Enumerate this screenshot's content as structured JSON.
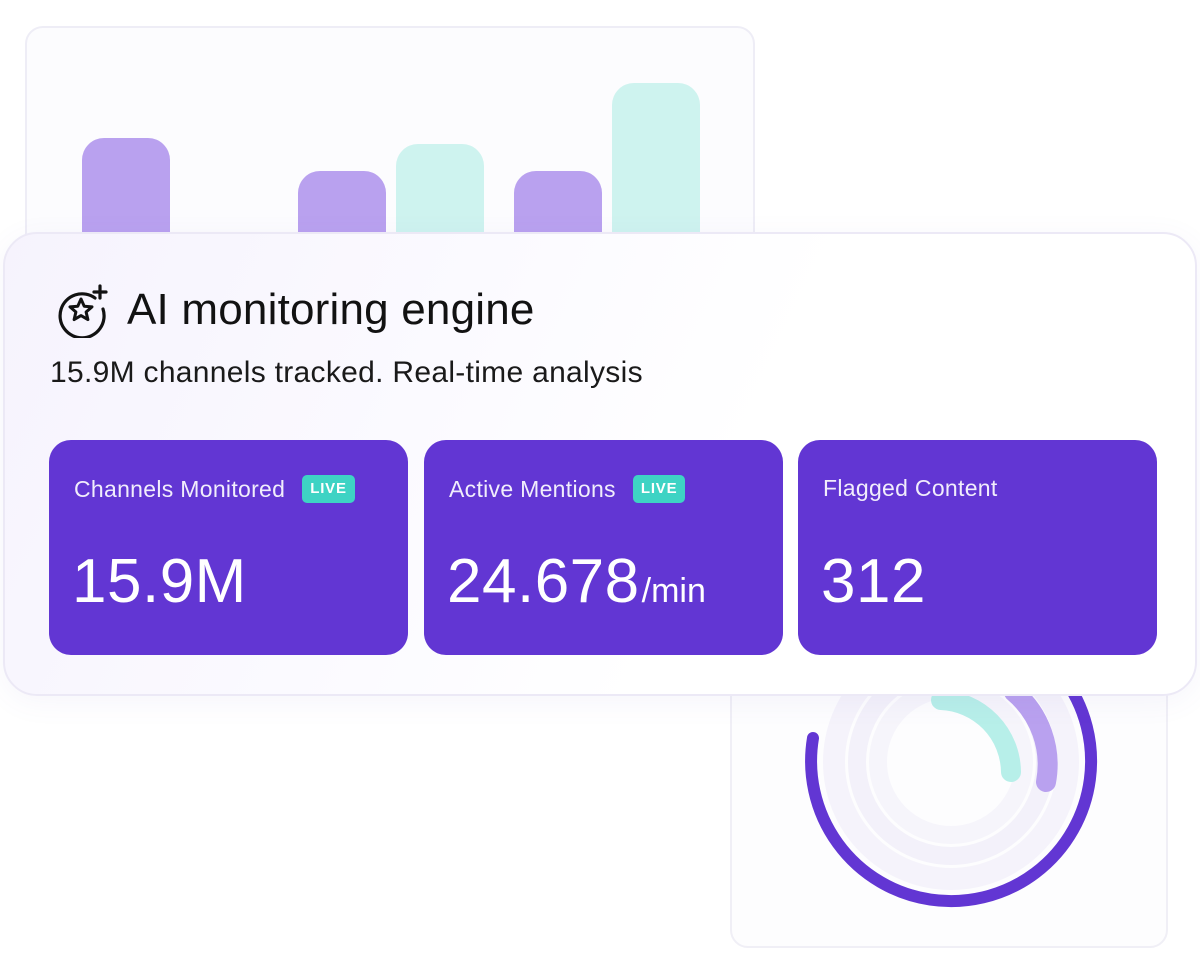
{
  "bar_chart": {
    "series": [
      {
        "name": "",
        "color": "#b9a1ef",
        "values": [
          0.69,
          0.44,
          0.44
        ]
      },
      {
        "name": "",
        "color": "#cef3ef",
        "values": [
          0.67,
          1.0
        ]
      }
    ]
  },
  "main": {
    "icon": "sparkle-star-icon",
    "title": "AI monitoring engine",
    "subtitle": "15.9M channels tracked. Real-time analysis"
  },
  "stats": [
    {
      "label": "Channels Monitored",
      "badge": "LIVE",
      "value": "15.9M",
      "unit": ""
    },
    {
      "label": "Active Mentions",
      "badge": "LIVE",
      "value": "24.678",
      "unit": "/min"
    },
    {
      "label": "Flagged Content",
      "badge": "",
      "value": "312",
      "unit": ""
    }
  ],
  "ring_chart": {
    "rings": [
      {
        "name": "",
        "color": "#6236d3",
        "fraction": 0.86
      },
      {
        "name": "",
        "color": "#b9a1ef",
        "fraction": 0.2
      },
      {
        "name": "",
        "color": "#b7efe9",
        "fraction": 0.17
      }
    ]
  },
  "colors": {
    "accent": "#6236d3",
    "live_badge": "#3ed3c4",
    "bar_purple": "#b9a1ef",
    "bar_mint": "#cef3ef"
  }
}
